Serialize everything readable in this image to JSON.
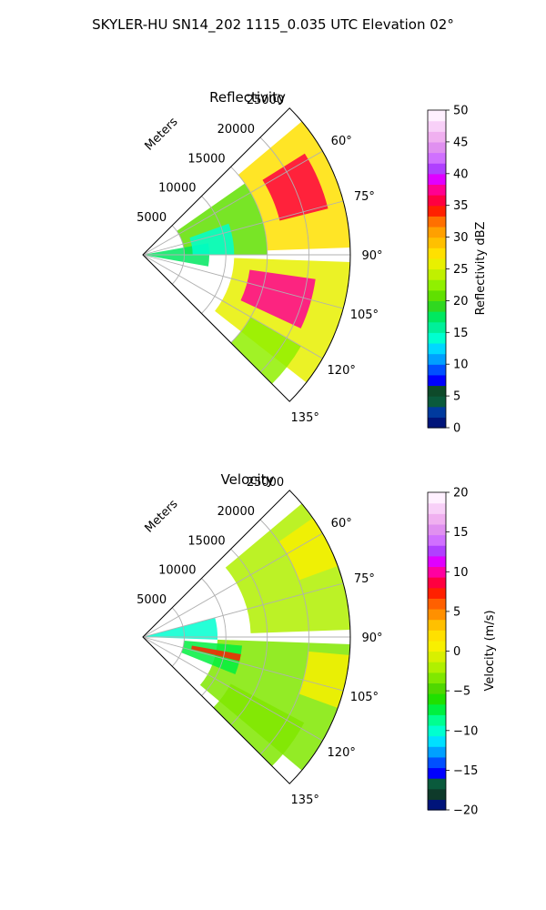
{
  "figure": {
    "suptitle": "SKYLER-HU  SN14_202  1115_0.035 UTC Elevation 02°"
  },
  "chart_data": [
    {
      "type": "heatmap",
      "projection": "polar-sector",
      "title": "Reflectivity",
      "range_label": "Meters",
      "azimuth_range_deg": [
        45,
        135
      ],
      "max_range_m": 25000,
      "range_ticks": [
        5000,
        10000,
        15000,
        20000,
        25000
      ],
      "range_tick_labels": [
        "5000",
        "10000",
        "15000",
        "20000",
        "25000"
      ],
      "azimuth_ticks": [
        60,
        75,
        90,
        105,
        120,
        135
      ],
      "azimuth_tick_labels": [
        "60°",
        "75°",
        "90°",
        "105°",
        "120°",
        "135°"
      ],
      "grid": true,
      "colorbar": {
        "label": "Reflectivity dBZ",
        "vmin": 0,
        "vmax": 50,
        "ticks": [
          0,
          5,
          10,
          15,
          20,
          25,
          30,
          35,
          40,
          45,
          50
        ],
        "tick_labels": [
          "0",
          "5",
          "10",
          "15",
          "20",
          "25",
          "30",
          "35",
          "40",
          "45",
          "50"
        ],
        "colors": [
          "#00147a",
          "#003a9e",
          "#0a5a3c",
          "#0e4a2a",
          "#0000ff",
          "#0050ff",
          "#00a0ff",
          "#00d8ff",
          "#00ffd0",
          "#00f09a",
          "#00e860",
          "#30d820",
          "#60e000",
          "#90f000",
          "#c0f000",
          "#e8f000",
          "#ffe000",
          "#ffc000",
          "#ffa000",
          "#ff7000",
          "#ff2000",
          "#ff0040",
          "#ff0090",
          "#e000ff",
          "#b040ff",
          "#d070ff",
          "#e090f0",
          "#f0b0f0",
          "#f8d0f8",
          "#fff0ff"
        ]
      },
      "echo_regions": [
        {
          "az": [
            50,
            88
          ],
          "r": [
            15000,
            25000
          ],
          "value": 27
        },
        {
          "az": [
            58,
            76
          ],
          "r": [
            17000,
            23000
          ],
          "value": 36
        },
        {
          "az": [
            92,
            128
          ],
          "r": [
            11000,
            25000
          ],
          "value": 26
        },
        {
          "az": [
            98,
            115
          ],
          "r": [
            13000,
            21000
          ],
          "value": 37
        },
        {
          "az": [
            55,
            90
          ],
          "r": [
            5000,
            15000
          ],
          "value": 21
        },
        {
          "az": [
            80,
            100
          ],
          "r": [
            0,
            8000
          ],
          "value": 17
        },
        {
          "az": [
            70,
            90
          ],
          "r": [
            6000,
            11000
          ],
          "value": 14
        },
        {
          "az": [
            120,
            135
          ],
          "r": [
            15000,
            22000
          ],
          "value": 22
        }
      ]
    },
    {
      "type": "heatmap",
      "projection": "polar-sector",
      "title": "Velocity",
      "range_label": "Meters",
      "azimuth_range_deg": [
        45,
        135
      ],
      "max_range_m": 25000,
      "range_ticks": [
        5000,
        10000,
        15000,
        20000,
        25000
      ],
      "range_tick_labels": [
        "5000",
        "10000",
        "15000",
        "20000",
        "25000"
      ],
      "azimuth_ticks": [
        60,
        75,
        90,
        105,
        120,
        135
      ],
      "azimuth_tick_labels": [
        "60°",
        "75°",
        "90°",
        "105°",
        "120°",
        "135°"
      ],
      "grid": true,
      "colorbar": {
        "label": "Velocity (m/s)",
        "vmin": -20,
        "vmax": 20,
        "ticks": [
          -20,
          -15,
          -10,
          -5,
          0,
          5,
          10,
          15,
          20
        ],
        "tick_labels": [
          "−20",
          "−15",
          "−10",
          "−5",
          "0",
          "5",
          "10",
          "15",
          "20"
        ],
        "colors": [
          "#00147a",
          "#0e3a2a",
          "#0a5a3c",
          "#0000ff",
          "#0050ff",
          "#00a0ff",
          "#00e0ff",
          "#00ffd0",
          "#00ff90",
          "#00f040",
          "#20e000",
          "#50d800",
          "#80e800",
          "#b0f000",
          "#d8f000",
          "#f8f000",
          "#ffe000",
          "#ffc000",
          "#ff9000",
          "#ff6000",
          "#ff2000",
          "#ff0040",
          "#ff00a0",
          "#e000ff",
          "#b040ff",
          "#d070ff",
          "#e090f0",
          "#f0b0f0",
          "#f8d0f8",
          "#fff0ff"
        ]
      },
      "echo_regions": [
        {
          "az": [
            50,
            88
          ],
          "r": [
            13000,
            25000
          ],
          "value": -2
        },
        {
          "az": [
            55,
            70
          ],
          "r": [
            20000,
            25000
          ],
          "value": 1
        },
        {
          "az": [
            92,
            130
          ],
          "r": [
            9000,
            25000
          ],
          "value": -3
        },
        {
          "az": [
            95,
            110
          ],
          "r": [
            20000,
            25000
          ],
          "value": 1
        },
        {
          "az": [
            75,
            92
          ],
          "r": [
            0,
            9000
          ],
          "value": -10
        },
        {
          "az": [
            95,
            112
          ],
          "r": [
            5000,
            12000
          ],
          "value": -7
        },
        {
          "az": [
            100,
            104
          ],
          "r": [
            6000,
            12000
          ],
          "value": 7
        },
        {
          "az": [
            118,
            135
          ],
          "r": [
            12000,
            22000
          ],
          "value": -4
        }
      ]
    }
  ]
}
